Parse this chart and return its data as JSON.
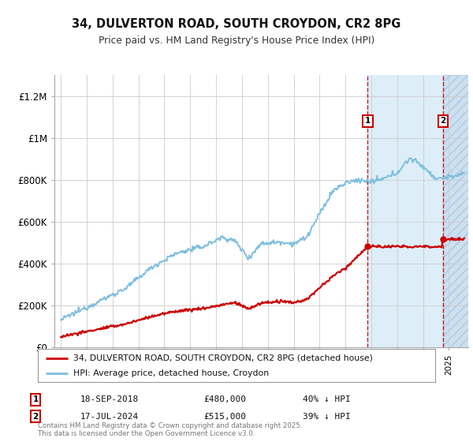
{
  "title": "34, DULVERTON ROAD, SOUTH CROYDON, CR2 8PG",
  "subtitle": "Price paid vs. HM Land Registry's House Price Index (HPI)",
  "ylabel_ticks": [
    "£0",
    "£200K",
    "£400K",
    "£600K",
    "£800K",
    "£1M",
    "£1.2M"
  ],
  "ylim": [
    0,
    1300000
  ],
  "xlim_start": 1994.5,
  "xlim_end": 2026.5,
  "hpi_color": "#7fbfdf",
  "price_color": "#cc0000",
  "transaction1_x": 2018.72,
  "transaction1_y": 480000,
  "transaction2_x": 2024.54,
  "transaction2_y": 515000,
  "transaction1_date": "18-SEP-2018",
  "transaction1_price": "£480,000",
  "transaction1_note": "40% ↓ HPI",
  "transaction2_date": "17-JUL-2024",
  "transaction2_price": "£515,000",
  "transaction2_note": "39% ↓ HPI",
  "legend_label1": "34, DULVERTON ROAD, SOUTH CROYDON, CR2 8PG (detached house)",
  "legend_label2": "HPI: Average price, detached house, Croydon",
  "footer": "Contains HM Land Registry data © Crown copyright and database right 2025.\nThis data is licensed under the Open Government Licence v3.0.",
  "background_color": "#ffffff",
  "grid_color": "#cccccc",
  "shade_color": "#ddeef8",
  "hatch_color": "#cce0f0"
}
